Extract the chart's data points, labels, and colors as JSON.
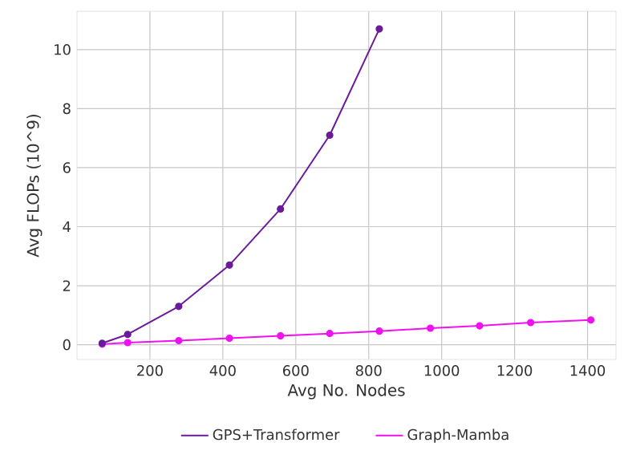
{
  "chart_data": {
    "type": "line",
    "xlabel": "Avg No. Nodes",
    "ylabel": "Avg FLOPs (10^9)",
    "xlim": [
      0,
      1478
    ],
    "xticks": [
      200,
      400,
      600,
      800,
      1000,
      1200,
      1400
    ],
    "ylim": [
      -0.5,
      11.3
    ],
    "yticks": [
      0,
      2,
      4,
      6,
      8,
      10
    ],
    "grid": true,
    "legend": "bottom",
    "marker": "circle",
    "line_style": "solid",
    "series": [
      {
        "name": "GPS+Transformer",
        "color": "#6a1b9a",
        "x": [
          69,
          139,
          279,
          418,
          558,
          693,
          829
        ],
        "values": [
          0.05,
          0.35,
          1.3,
          2.7,
          4.6,
          7.1,
          10.7
        ]
      },
      {
        "name": "Graph-Mamba",
        "color": "#f010f0",
        "x": [
          69,
          139,
          279,
          418,
          558,
          693,
          829,
          969,
          1104,
          1244,
          1409
        ],
        "values": [
          0.02,
          0.07,
          0.14,
          0.22,
          0.3,
          0.38,
          0.46,
          0.56,
          0.64,
          0.75,
          0.84
        ]
      }
    ]
  }
}
